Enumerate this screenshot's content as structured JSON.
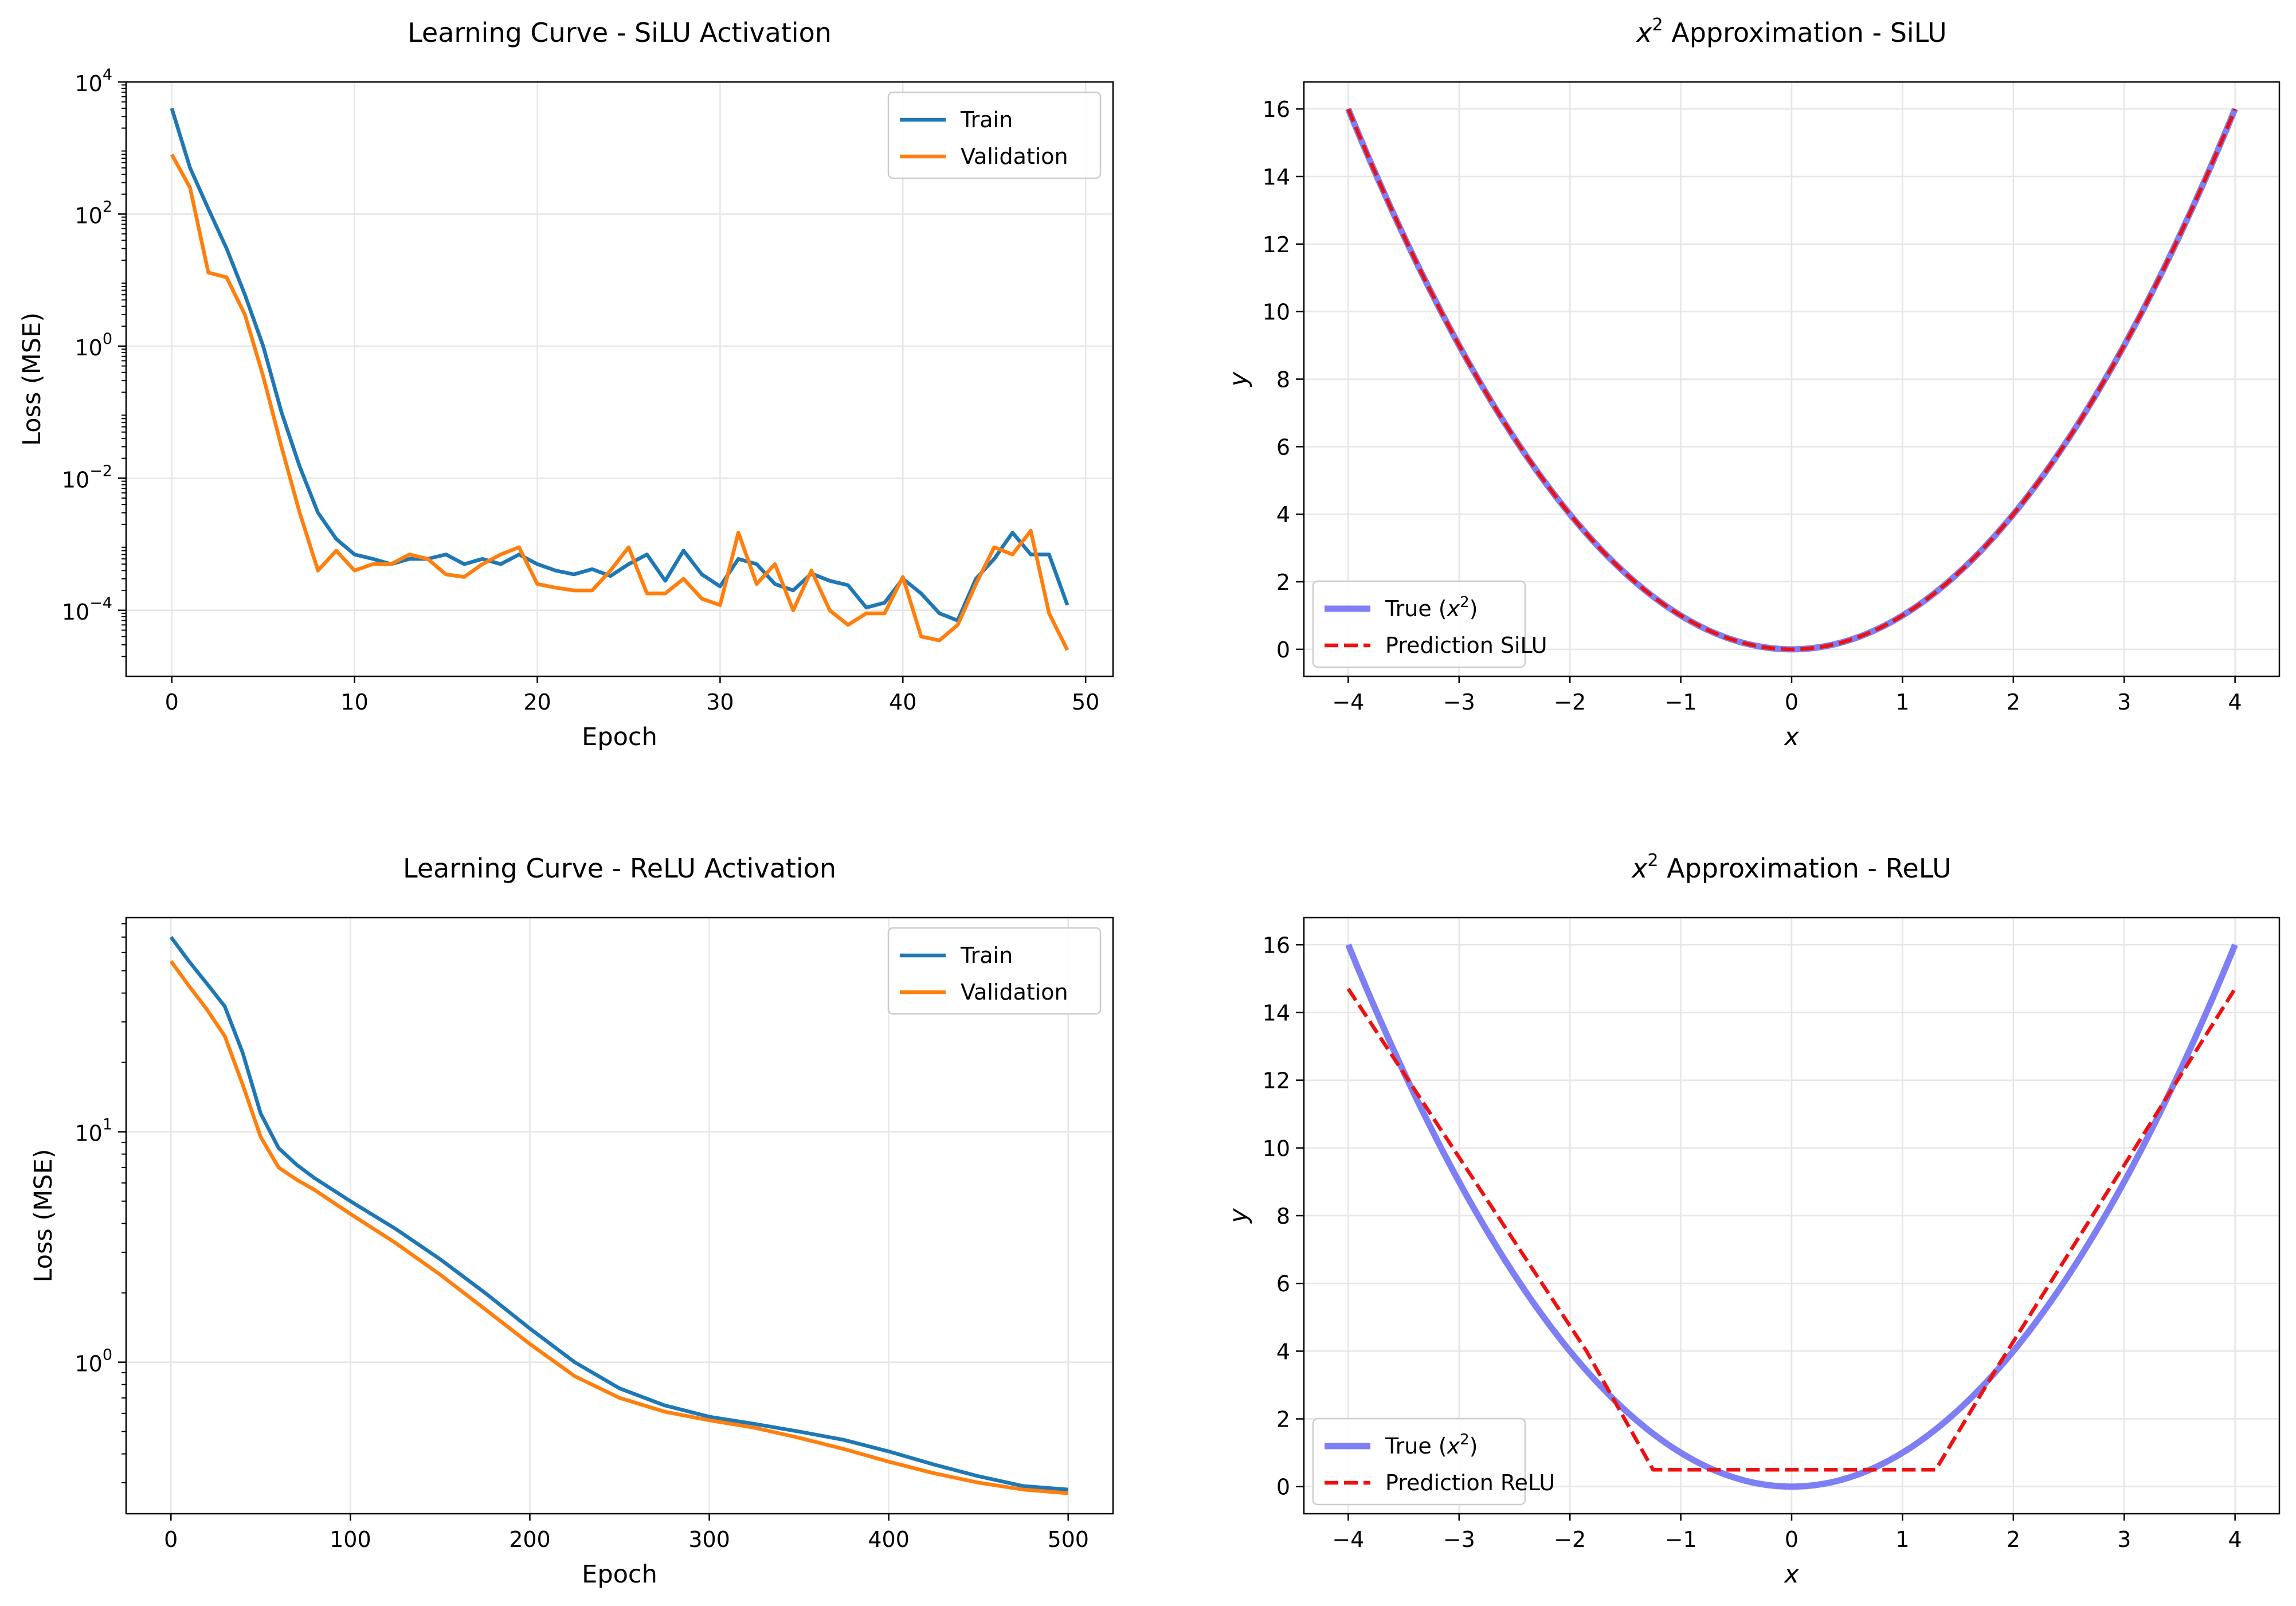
{
  "colors": {
    "train": "#1f77b4",
    "validation": "#ff7f0e",
    "true_curve": "#7f7ff5",
    "prediction": "#ee1111",
    "grid": "#e6e6e6"
  },
  "chart_data": [
    {
      "id": "silu-learning",
      "type": "line",
      "title": "Learning Curve - SiLU Activation",
      "xlabel": "Epoch",
      "ylabel": "Loss (MSE)",
      "yscale": "log",
      "xlim": [
        -2.5,
        51.5
      ],
      "ylim": [
        1e-05,
        10000
      ],
      "xticks": [
        0,
        10,
        20,
        30,
        40,
        50
      ],
      "yticks": [
        0.0001,
        0.01,
        1,
        100,
        10000
      ],
      "ytick_labels": [
        [
          "10",
          "−4"
        ],
        [
          "10",
          "−2"
        ],
        [
          "10",
          "0"
        ],
        [
          "10",
          "2"
        ],
        [
          "10",
          "4"
        ]
      ],
      "legend_position": "upper right",
      "grid": true,
      "series": [
        {
          "name": "Train",
          "color_key": "train",
          "x": [
            0,
            1,
            2,
            3,
            4,
            5,
            6,
            7,
            8,
            9,
            10,
            11,
            12,
            13,
            14,
            15,
            16,
            17,
            18,
            19,
            20,
            21,
            22,
            23,
            24,
            25,
            26,
            27,
            28,
            29,
            30,
            31,
            32,
            33,
            34,
            35,
            36,
            37,
            38,
            39,
            40,
            41,
            42,
            43,
            44,
            45,
            46,
            47,
            48,
            49
          ],
          "y": [
            4000,
            500,
            120,
            30,
            6,
            1,
            0.1,
            0.015,
            0.003,
            0.0012,
            0.0007,
            0.0006,
            0.0005,
            0.0006,
            0.0006,
            0.0007,
            0.0005,
            0.0006,
            0.0005,
            0.0007,
            0.0005,
            0.0004,
            0.00035,
            0.00042,
            0.00033,
            0.0005,
            0.0007,
            0.00028,
            0.0008,
            0.00035,
            0.00023,
            0.0006,
            0.0005,
            0.00025,
            0.0002,
            0.00036,
            0.00028,
            0.00024,
            0.00011,
            0.00013,
            0.0003,
            0.00018,
            9e-05,
            7e-05,
            0.0003,
            0.0006,
            0.0015,
            0.0007,
            0.0007,
            0.00012
          ]
        },
        {
          "name": "Validation",
          "color_key": "validation",
          "x": [
            0,
            1,
            2,
            3,
            4,
            5,
            6,
            7,
            8,
            9,
            10,
            11,
            12,
            13,
            14,
            15,
            16,
            17,
            18,
            19,
            20,
            21,
            22,
            23,
            24,
            25,
            26,
            27,
            28,
            29,
            30,
            31,
            32,
            33,
            34,
            35,
            36,
            37,
            38,
            39,
            40,
            41,
            42,
            43,
            44,
            45,
            46,
            47,
            48,
            49
          ],
          "y": [
            800,
            250,
            13,
            11,
            3,
            0.35,
            0.03,
            0.003,
            0.0004,
            0.0008,
            0.0004,
            0.0005,
            0.0005,
            0.0007,
            0.0006,
            0.00035,
            0.00032,
            0.0005,
            0.0007,
            0.0009,
            0.00025,
            0.00022,
            0.0002,
            0.0002,
            0.0004,
            0.0009,
            0.00018,
            0.00018,
            0.0003,
            0.00015,
            0.00012,
            0.0015,
            0.00025,
            0.0005,
            0.0001,
            0.0004,
            0.0001,
            6e-05,
            9e-05,
            9e-05,
            0.00032,
            4e-05,
            3.5e-05,
            6e-05,
            0.00025,
            0.0009,
            0.0007,
            0.0016,
            9e-05,
            2.5e-05
          ]
        }
      ]
    },
    {
      "id": "silu-approx",
      "type": "line",
      "title_parts": [
        "x",
        "2",
        " Approximation - SiLU"
      ],
      "xlabel": "x",
      "ylabel": "y",
      "yscale": "linear",
      "xlim": [
        -4.4,
        4.4
      ],
      "ylim": [
        -0.8,
        16.8
      ],
      "xticks": [
        -4,
        -3,
        -2,
        -1,
        0,
        1,
        2,
        3,
        4
      ],
      "xtick_labels": [
        "−4",
        "−3",
        "−2",
        "−1",
        "0",
        "1",
        "2",
        "3",
        "4"
      ],
      "yticks": [
        0,
        2,
        4,
        6,
        8,
        10,
        12,
        14,
        16
      ],
      "legend_position": "lower left",
      "grid": true,
      "series": [
        {
          "name_parts": [
            "True (",
            "x",
            "2",
            ")"
          ],
          "kind": "function",
          "fn": "x2",
          "xrange": [
            -4,
            4
          ],
          "color_key": "true_curve",
          "style": "solid-thick"
        },
        {
          "name": "Prediction SiLU",
          "kind": "function",
          "fn": "x2",
          "xrange": [
            -4,
            4
          ],
          "color_key": "prediction",
          "style": "dashed"
        }
      ]
    },
    {
      "id": "relu-learning",
      "type": "line",
      "title": "Learning Curve - ReLU Activation",
      "xlabel": "Epoch",
      "ylabel": "Loss (MSE)",
      "yscale": "log",
      "xlim": [
        -25,
        525
      ],
      "ylim": [
        0.22,
        85
      ],
      "xticks": [
        0,
        100,
        200,
        300,
        400,
        500
      ],
      "yticks": [
        1,
        10
      ],
      "ytick_labels": [
        [
          "10",
          "0"
        ],
        [
          "10",
          "1"
        ]
      ],
      "legend_position": "upper right",
      "grid": true,
      "series": [
        {
          "name": "Train",
          "color_key": "train",
          "x": [
            0,
            10,
            20,
            30,
            40,
            50,
            60,
            70,
            80,
            100,
            125,
            150,
            175,
            200,
            225,
            250,
            275,
            300,
            325,
            350,
            375,
            400,
            425,
            450,
            475,
            500
          ],
          "y": [
            70,
            55,
            44,
            35,
            22,
            12,
            8.5,
            7.2,
            6.3,
            5.0,
            3.8,
            2.8,
            2.0,
            1.4,
            1.0,
            0.77,
            0.65,
            0.58,
            0.54,
            0.5,
            0.46,
            0.41,
            0.36,
            0.32,
            0.29,
            0.28
          ]
        },
        {
          "name": "Validation",
          "color_key": "validation",
          "x": [
            0,
            10,
            20,
            30,
            40,
            50,
            60,
            70,
            80,
            100,
            125,
            150,
            175,
            200,
            225,
            250,
            275,
            300,
            325,
            350,
            375,
            400,
            425,
            450,
            475,
            500
          ],
          "y": [
            55,
            43,
            34,
            26,
            16,
            9.5,
            7.0,
            6.2,
            5.6,
            4.4,
            3.3,
            2.4,
            1.7,
            1.2,
            0.87,
            0.7,
            0.61,
            0.56,
            0.52,
            0.47,
            0.42,
            0.37,
            0.33,
            0.3,
            0.28,
            0.27
          ]
        }
      ]
    },
    {
      "id": "relu-approx",
      "type": "line",
      "title_parts": [
        "x",
        "2",
        " Approximation - ReLU"
      ],
      "xlabel": "x",
      "ylabel": "y",
      "yscale": "linear",
      "xlim": [
        -4.4,
        4.4
      ],
      "ylim": [
        -0.8,
        16.8
      ],
      "xticks": [
        -4,
        -3,
        -2,
        -1,
        0,
        1,
        2,
        3,
        4
      ],
      "xtick_labels": [
        "−4",
        "−3",
        "−2",
        "−1",
        "0",
        "1",
        "2",
        "3",
        "4"
      ],
      "yticks": [
        0,
        2,
        4,
        6,
        8,
        10,
        12,
        14,
        16
      ],
      "legend_position": "lower left",
      "grid": true,
      "series": [
        {
          "name_parts": [
            "True (",
            "x",
            "2",
            ")"
          ],
          "kind": "function",
          "fn": "x2",
          "xrange": [
            -4,
            4
          ],
          "color_key": "true_curve",
          "style": "solid-thick"
        },
        {
          "name": "Prediction ReLU",
          "kind": "points",
          "x": [
            -4,
            -1.85,
            -1.25,
            1.3,
            1.85,
            4
          ],
          "y": [
            14.7,
            4.0,
            0.5,
            0.5,
            3.5,
            14.7
          ],
          "color_key": "prediction",
          "style": "dashed"
        }
      ]
    }
  ]
}
